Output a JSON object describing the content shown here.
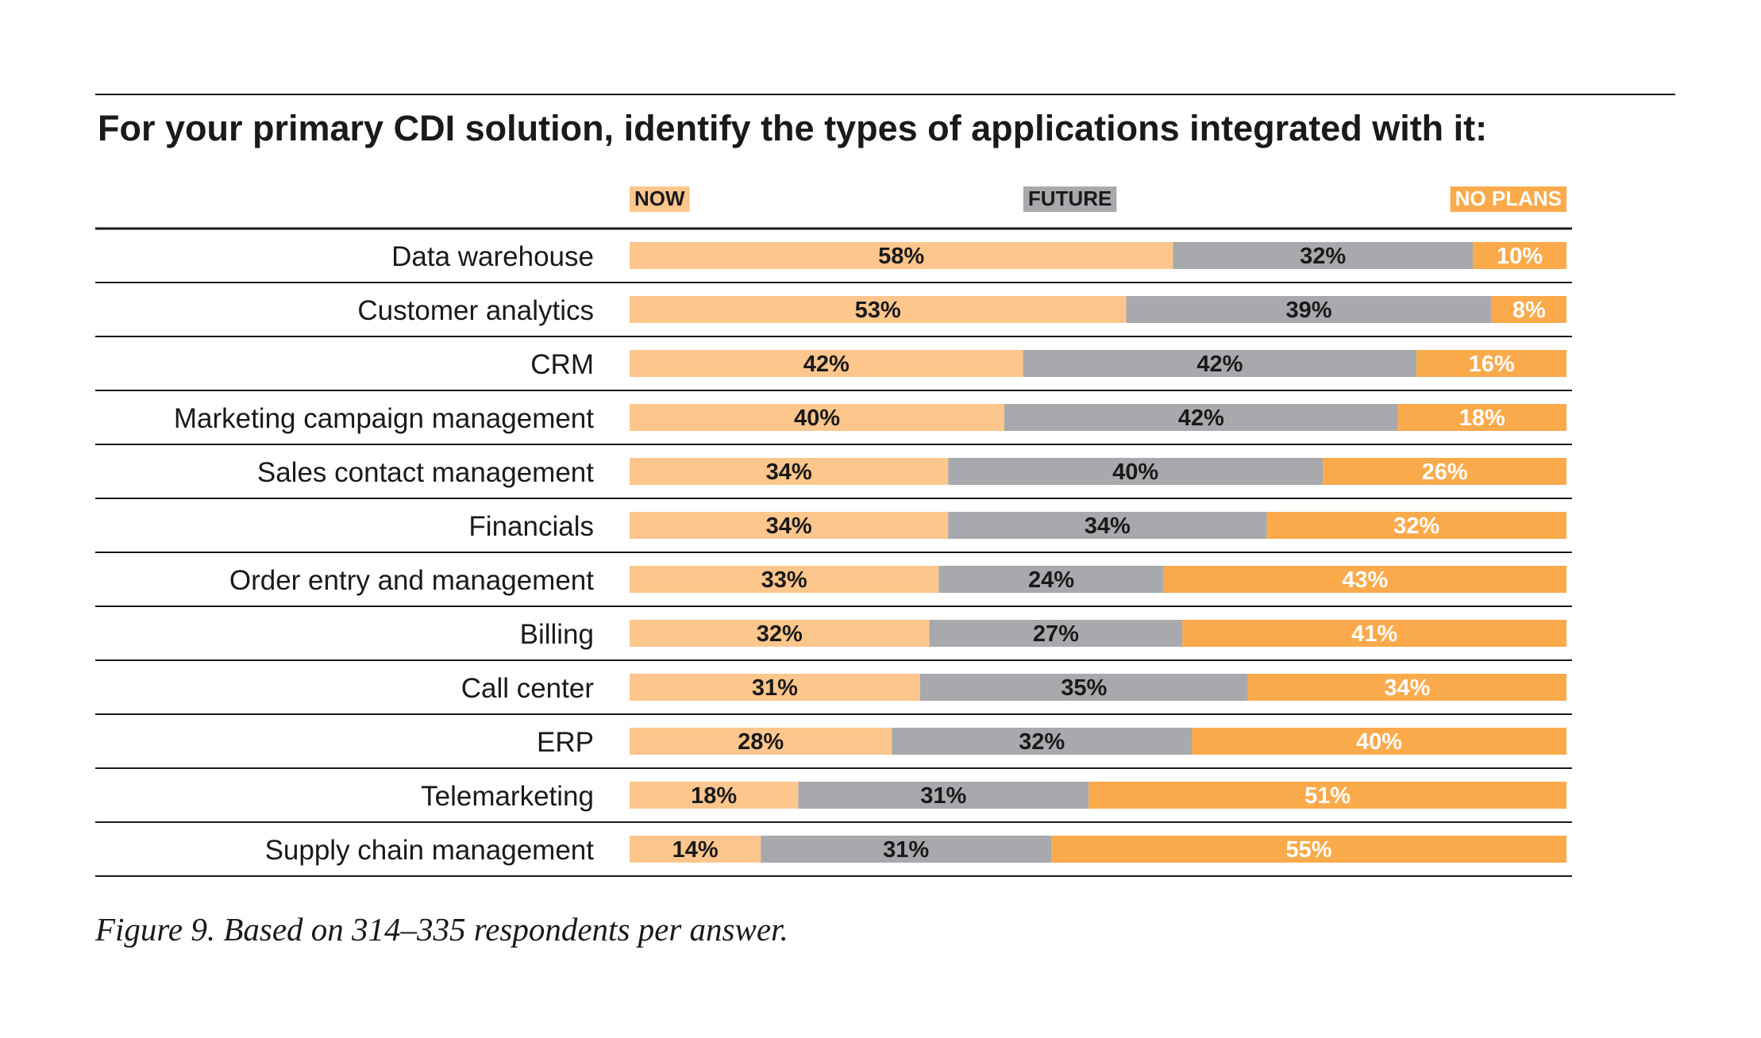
{
  "chart_data": {
    "type": "bar",
    "orientation": "horizontal",
    "stacked": true,
    "title": "For your primary CDI solution, identify the types of applications integrated with it:",
    "caption": "Figure 9. Based on 314–335 respondents per answer.",
    "categories": [
      "Data warehouse",
      "Customer analytics",
      "CRM",
      "Marketing campaign management",
      "Sales contact management",
      "Financials",
      "Order entry and management",
      "Billing",
      "Call center",
      "ERP",
      "Telemarketing",
      "Supply chain management"
    ],
    "series": [
      {
        "name": "NOW",
        "color": "#fdc68c",
        "text_color": "#1a1a1a",
        "values": [
          58,
          53,
          42,
          40,
          34,
          34,
          33,
          32,
          31,
          28,
          18,
          14
        ]
      },
      {
        "name": "FUTURE",
        "color": "#a7a9ac",
        "text_color": "#1a1a1a",
        "values": [
          32,
          39,
          42,
          42,
          40,
          34,
          24,
          27,
          35,
          32,
          31,
          31
        ]
      },
      {
        "name": "NO PLANS",
        "color": "#fbaa4b",
        "text_color": "#ffffff",
        "values": [
          10,
          8,
          16,
          18,
          26,
          32,
          43,
          41,
          34,
          40,
          51,
          55
        ]
      }
    ],
    "value_suffix": "%",
    "xlim": [
      0,
      100
    ],
    "legend": "top"
  }
}
